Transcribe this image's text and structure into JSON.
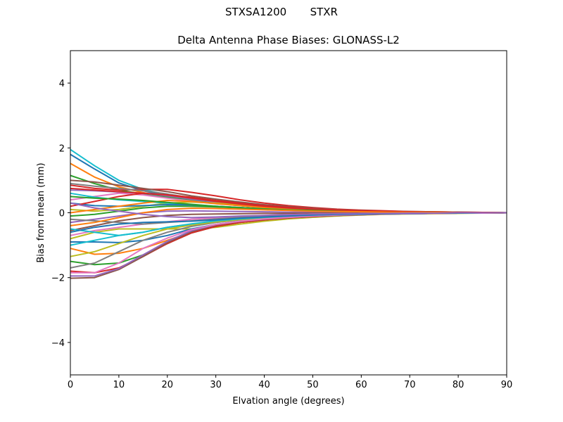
{
  "header": {
    "suptitle": "STXSA1200       STXR",
    "title": "Delta Antenna Phase Biases: GLONASS-L2"
  },
  "chart_data": {
    "type": "line",
    "title": "Delta Antenna Phase Biases: GLONASS-L2",
    "xlabel": "Elvation angle (degrees)",
    "ylabel": "Bias from mean (mm)",
    "xlim": [
      0,
      90
    ],
    "ylim": [
      -5,
      5
    ],
    "xticks": [
      0,
      10,
      20,
      30,
      40,
      50,
      60,
      70,
      80,
      90
    ],
    "yticks": [
      -4,
      -2,
      0,
      2,
      4
    ],
    "ytick_labels": [
      "−4",
      "−2",
      "0",
      "2",
      "4"
    ],
    "grid": false,
    "x": [
      0,
      5,
      10,
      15,
      20,
      25,
      30,
      35,
      40,
      45,
      50,
      55,
      60,
      65,
      70,
      75,
      80,
      85,
      90
    ],
    "series": [
      {
        "color": "#17becf",
        "values": [
          1.95,
          1.45,
          1.0,
          0.72,
          0.55,
          0.42,
          0.32,
          0.24,
          0.18,
          0.13,
          0.1,
          0.07,
          0.05,
          0.04,
          0.03,
          0.02,
          0.01,
          0.01,
          0.0
        ]
      },
      {
        "color": "#1f77b4",
        "values": [
          1.8,
          1.35,
          0.92,
          0.68,
          0.52,
          0.4,
          0.3,
          0.23,
          0.17,
          0.13,
          0.09,
          0.07,
          0.05,
          0.04,
          0.03,
          0.02,
          0.01,
          0.01,
          0.0
        ]
      },
      {
        "color": "#ff7f0e",
        "values": [
          1.52,
          1.1,
          0.8,
          0.62,
          0.5,
          0.38,
          0.29,
          0.22,
          0.17,
          0.12,
          0.09,
          0.07,
          0.05,
          0.04,
          0.03,
          0.02,
          0.01,
          0.01,
          0.0
        ]
      },
      {
        "color": "#2ca02c",
        "values": [
          1.15,
          0.9,
          0.7,
          0.58,
          0.48,
          0.38,
          0.29,
          0.22,
          0.16,
          0.12,
          0.09,
          0.07,
          0.05,
          0.04,
          0.03,
          0.02,
          0.01,
          0.01,
          0.0
        ]
      },
      {
        "color": "#d62728",
        "values": [
          0.85,
          0.75,
          0.7,
          0.72,
          0.72,
          0.63,
          0.52,
          0.4,
          0.3,
          0.22,
          0.16,
          0.11,
          0.08,
          0.06,
          0.04,
          0.03,
          0.02,
          0.01,
          0.0
        ]
      },
      {
        "color": "#9467bd",
        "values": [
          0.7,
          0.68,
          0.64,
          0.6,
          0.52,
          0.42,
          0.33,
          0.26,
          0.2,
          0.15,
          0.11,
          0.08,
          0.06,
          0.04,
          0.03,
          0.02,
          0.01,
          0.01,
          0.0
        ]
      },
      {
        "color": "#8c564b",
        "values": [
          1.0,
          0.95,
          0.85,
          0.75,
          0.65,
          0.52,
          0.42,
          0.33,
          0.25,
          0.19,
          0.14,
          0.1,
          0.07,
          0.05,
          0.04,
          0.03,
          0.02,
          0.01,
          0.0
        ]
      },
      {
        "color": "#e377c2",
        "values": [
          0.4,
          0.5,
          0.6,
          0.55,
          0.45,
          0.36,
          0.28,
          0.22,
          0.17,
          0.13,
          0.09,
          0.07,
          0.05,
          0.03,
          0.02,
          0.02,
          0.01,
          0.01,
          0.0
        ]
      },
      {
        "color": "#7f7f7f",
        "values": [
          0.9,
          0.82,
          0.75,
          0.68,
          0.58,
          0.46,
          0.36,
          0.28,
          0.21,
          0.16,
          0.12,
          0.08,
          0.06,
          0.04,
          0.03,
          0.02,
          0.01,
          0.01,
          0.0
        ]
      },
      {
        "color": "#bcbd22",
        "values": [
          0.1,
          0.05,
          0.1,
          0.2,
          0.3,
          0.33,
          0.3,
          0.25,
          0.19,
          0.14,
          0.1,
          0.07,
          0.05,
          0.04,
          0.03,
          0.02,
          0.01,
          0.01,
          0.0
        ]
      },
      {
        "color": "#17becf",
        "values": [
          0.6,
          0.48,
          0.4,
          0.35,
          0.3,
          0.25,
          0.2,
          0.16,
          0.12,
          0.09,
          0.07,
          0.05,
          0.04,
          0.03,
          0.02,
          0.01,
          0.01,
          0.0,
          0.0
        ]
      },
      {
        "color": "#1f77b4",
        "values": [
          0.3,
          0.22,
          0.2,
          0.22,
          0.25,
          0.24,
          0.2,
          0.16,
          0.12,
          0.09,
          0.07,
          0.05,
          0.04,
          0.03,
          0.02,
          0.01,
          0.01,
          0.0,
          0.0
        ]
      },
      {
        "color": "#ff7f0e",
        "values": [
          0.0,
          0.1,
          0.2,
          0.3,
          0.38,
          0.35,
          0.28,
          0.22,
          0.16,
          0.12,
          0.09,
          0.06,
          0.05,
          0.03,
          0.02,
          0.02,
          0.01,
          0.0,
          0.0
        ]
      },
      {
        "color": "#2ca02c",
        "values": [
          -0.1,
          -0.05,
          0.05,
          0.15,
          0.2,
          0.2,
          0.18,
          0.15,
          0.11,
          0.08,
          0.06,
          0.04,
          0.03,
          0.02,
          0.02,
          0.01,
          0.01,
          0.0,
          0.0
        ]
      },
      {
        "color": "#d62728",
        "values": [
          0.2,
          0.35,
          0.5,
          0.6,
          0.55,
          0.45,
          0.35,
          0.27,
          0.2,
          0.15,
          0.11,
          0.08,
          0.06,
          0.04,
          0.03,
          0.02,
          0.01,
          0.01,
          0.0
        ]
      },
      {
        "color": "#9467bd",
        "values": [
          -0.3,
          -0.2,
          -0.1,
          0.0,
          0.05,
          0.06,
          0.05,
          0.04,
          0.03,
          0.02,
          0.02,
          0.01,
          0.01,
          0.01,
          0.0,
          0.0,
          0.0,
          0.0,
          0.0
        ]
      },
      {
        "color": "#8c564b",
        "values": [
          -0.55,
          -0.4,
          -0.25,
          -0.15,
          -0.08,
          -0.05,
          -0.04,
          -0.03,
          -0.02,
          -0.02,
          -0.01,
          -0.01,
          -0.01,
          0.0,
          0.0,
          0.0,
          0.0,
          0.0,
          0.0
        ]
      },
      {
        "color": "#e377c2",
        "values": [
          -0.7,
          -0.55,
          -0.45,
          -0.35,
          -0.28,
          -0.2,
          -0.15,
          -0.11,
          -0.08,
          -0.06,
          -0.04,
          -0.03,
          -0.02,
          -0.02,
          -0.01,
          -0.01,
          0.0,
          0.0,
          0.0
        ]
      },
      {
        "color": "#7f7f7f",
        "values": [
          -0.2,
          -0.25,
          -0.3,
          -0.35,
          -0.3,
          -0.25,
          -0.19,
          -0.14,
          -0.1,
          -0.07,
          -0.05,
          -0.04,
          -0.03,
          -0.02,
          -0.01,
          -0.01,
          0.0,
          0.0,
          0.0
        ]
      },
      {
        "color": "#bcbd22",
        "values": [
          -0.8,
          -0.6,
          -0.5,
          -0.5,
          -0.5,
          -0.5,
          -0.45,
          -0.35,
          -0.26,
          -0.19,
          -0.14,
          -0.1,
          -0.07,
          -0.05,
          -0.04,
          -0.03,
          -0.02,
          -0.01,
          0.0
        ]
      },
      {
        "color": "#17becf",
        "values": [
          -0.5,
          -0.6,
          -0.7,
          -0.6,
          -0.45,
          -0.35,
          -0.27,
          -0.2,
          -0.15,
          -0.11,
          -0.08,
          -0.06,
          -0.04,
          -0.03,
          -0.02,
          -0.02,
          -0.01,
          -0.01,
          0.0
        ]
      },
      {
        "color": "#1f77b4",
        "values": [
          -0.9,
          -0.9,
          -0.92,
          -0.85,
          -0.7,
          -0.5,
          -0.36,
          -0.27,
          -0.2,
          -0.15,
          -0.11,
          -0.08,
          -0.06,
          -0.04,
          -0.03,
          -0.02,
          -0.01,
          -0.01,
          0.0
        ]
      },
      {
        "color": "#ff7f0e",
        "values": [
          -1.1,
          -1.28,
          -1.25,
          -1.1,
          -0.85,
          -0.6,
          -0.42,
          -0.3,
          -0.22,
          -0.16,
          -0.12,
          -0.08,
          -0.06,
          -0.04,
          -0.03,
          -0.02,
          -0.01,
          -0.01,
          0.0
        ]
      },
      {
        "color": "#2ca02c",
        "values": [
          -1.5,
          -1.6,
          -1.55,
          -1.3,
          -0.95,
          -0.62,
          -0.42,
          -0.3,
          -0.22,
          -0.16,
          -0.12,
          -0.08,
          -0.06,
          -0.04,
          -0.03,
          -0.02,
          -0.01,
          -0.01,
          0.0
        ]
      },
      {
        "color": "#d62728",
        "values": [
          -1.8,
          -1.85,
          -1.7,
          -1.35,
          -0.95,
          -0.62,
          -0.42,
          -0.3,
          -0.22,
          -0.16,
          -0.12,
          -0.08,
          -0.06,
          -0.04,
          -0.03,
          -0.02,
          -0.01,
          -0.01,
          0.0
        ]
      },
      {
        "color": "#8c564b",
        "values": [
          -2.02,
          -2.0,
          -1.75,
          -1.35,
          -0.92,
          -0.58,
          -0.38,
          -0.27,
          -0.2,
          -0.15,
          -0.11,
          -0.08,
          -0.06,
          -0.04,
          -0.03,
          -0.02,
          -0.01,
          -0.01,
          0.0
        ]
      },
      {
        "color": "#9467bd",
        "values": [
          -1.95,
          -1.95,
          -1.72,
          -1.3,
          -0.88,
          -0.55,
          -0.36,
          -0.26,
          -0.19,
          -0.14,
          -0.1,
          -0.07,
          -0.05,
          -0.04,
          -0.03,
          -0.02,
          -0.01,
          -0.01,
          0.0
        ]
      },
      {
        "color": "#7f7f7f",
        "values": [
          -1.7,
          -1.55,
          -1.2,
          -0.85,
          -0.6,
          -0.42,
          -0.3,
          -0.22,
          -0.16,
          -0.12,
          -0.09,
          -0.06,
          -0.05,
          -0.03,
          -0.02,
          -0.02,
          -0.01,
          -0.01,
          0.0
        ]
      },
      {
        "color": "#bcbd22",
        "values": [
          -1.35,
          -1.2,
          -0.95,
          -0.7,
          -0.5,
          -0.38,
          -0.28,
          -0.21,
          -0.15,
          -0.11,
          -0.08,
          -0.06,
          -0.04,
          -0.03,
          -0.02,
          -0.02,
          -0.01,
          -0.01,
          0.0
        ]
      },
      {
        "color": "#e377c2",
        "values": [
          -1.85,
          -1.85,
          -1.55,
          -1.1,
          -0.78,
          -0.52,
          -0.36,
          -0.26,
          -0.19,
          -0.14,
          -0.1,
          -0.07,
          -0.05,
          -0.04,
          -0.03,
          -0.02,
          -0.01,
          -0.01,
          0.0
        ]
      },
      {
        "color": "#17becf",
        "values": [
          -1.0,
          -0.85,
          -0.7,
          -0.6,
          -0.45,
          -0.34,
          -0.25,
          -0.19,
          -0.14,
          -0.1,
          -0.07,
          -0.05,
          -0.04,
          -0.03,
          -0.02,
          -0.01,
          -0.01,
          0.0,
          0.0
        ]
      },
      {
        "color": "#1f77b4",
        "values": [
          -0.6,
          -0.45,
          -0.35,
          -0.3,
          -0.28,
          -0.26,
          -0.22,
          -0.17,
          -0.13,
          -0.1,
          -0.07,
          -0.05,
          -0.04,
          -0.03,
          -0.02,
          -0.01,
          -0.01,
          0.0,
          0.0
        ]
      },
      {
        "color": "#2ca02c",
        "values": [
          0.5,
          0.45,
          0.42,
          0.38,
          0.32,
          0.26,
          0.2,
          0.16,
          0.12,
          0.09,
          0.07,
          0.05,
          0.04,
          0.03,
          0.02,
          0.01,
          0.01,
          0.0,
          0.0
        ]
      },
      {
        "color": "#d62728",
        "values": [
          0.75,
          0.7,
          0.65,
          0.6,
          0.55,
          0.48,
          0.38,
          0.3,
          0.22,
          0.17,
          0.12,
          0.09,
          0.06,
          0.05,
          0.03,
          0.02,
          0.01,
          0.01,
          0.0
        ]
      },
      {
        "color": "#ff7f0e",
        "values": [
          -0.4,
          -0.3,
          -0.15,
          0.0,
          0.1,
          0.14,
          0.13,
          0.11,
          0.09,
          0.07,
          0.05,
          0.04,
          0.03,
          0.02,
          0.01,
          0.01,
          0.0,
          0.0,
          0.0
        ]
      },
      {
        "color": "#9467bd",
        "values": [
          0.3,
          0.15,
          0.05,
          -0.05,
          -0.12,
          -0.15,
          -0.13,
          -0.1,
          -0.08,
          -0.06,
          -0.04,
          -0.03,
          -0.02,
          -0.02,
          -0.01,
          -0.01,
          0.0,
          0.0,
          0.0
        ]
      }
    ]
  }
}
